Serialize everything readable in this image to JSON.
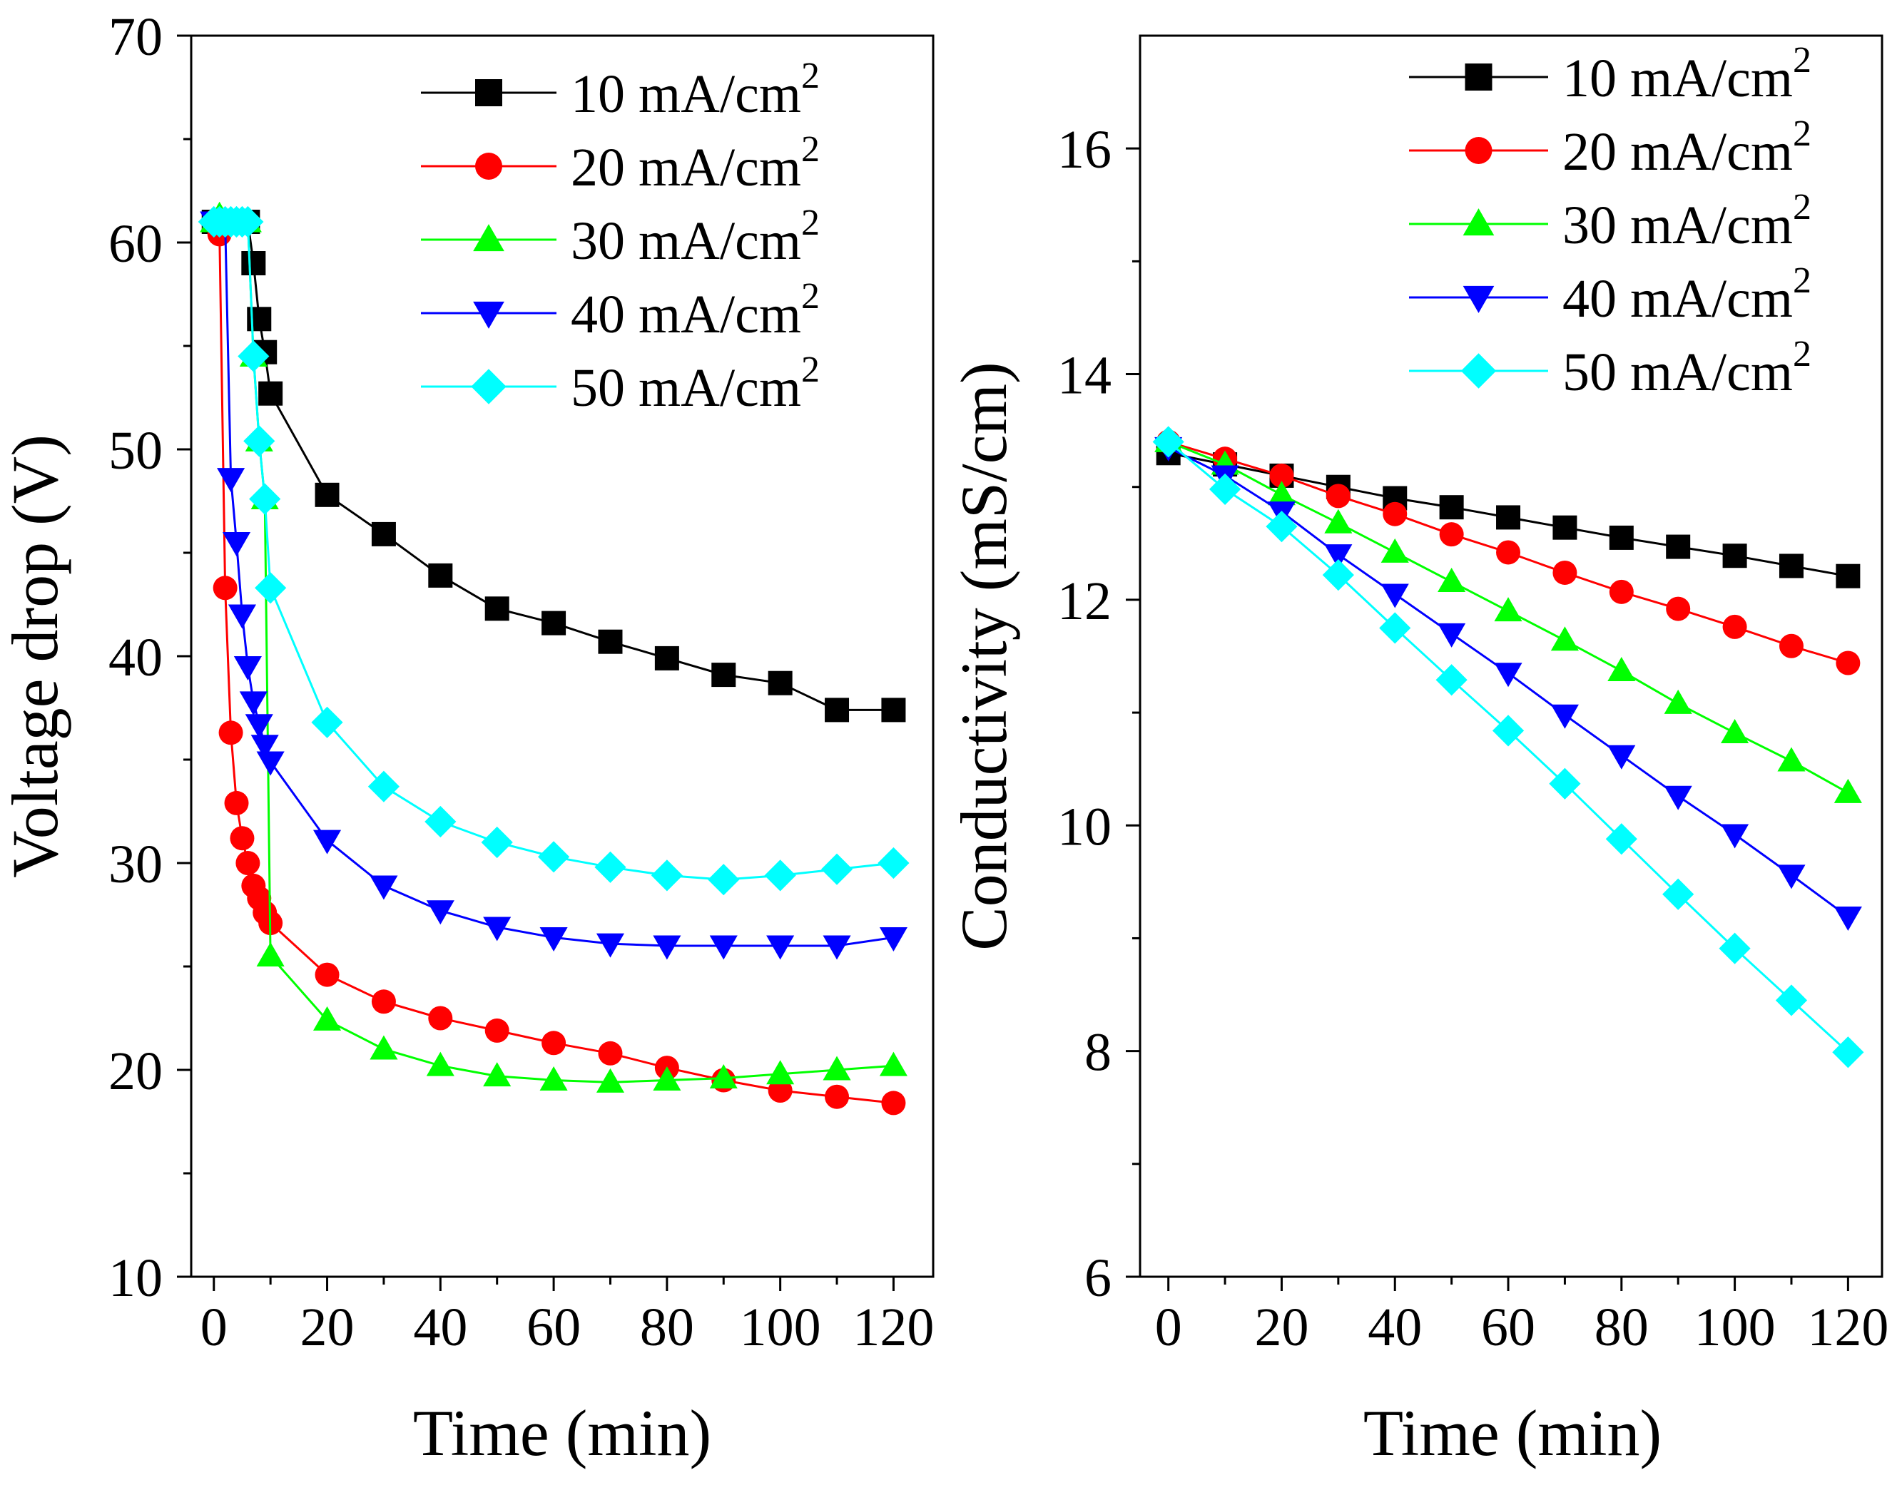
{
  "chart_data": [
    {
      "type": "line",
      "xlabel": "Time (min)",
      "ylabel": "Voltage drop (V)",
      "xlim": [
        -4,
        127
      ],
      "ylim": [
        10,
        70
      ],
      "xticks": [
        0,
        20,
        40,
        60,
        80,
        100,
        120
      ],
      "yticks": [
        10,
        20,
        30,
        40,
        50,
        60,
        70
      ],
      "x_tick_labels": [
        "0",
        "20",
        "40",
        "60",
        "80",
        "100",
        "120"
      ],
      "y_tick_labels": [
        "10",
        "20",
        "30",
        "40",
        "50",
        "60",
        "70"
      ],
      "legend": "top-right",
      "series": [
        {
          "name": "10 mA/cm",
          "sup": "2",
          "color": "#000000",
          "marker": "square",
          "x": [
            0,
            1,
            2,
            3,
            4,
            5,
            6,
            7,
            8,
            9,
            10,
            20,
            30,
            40,
            50,
            60,
            70,
            80,
            90,
            100,
            110,
            120
          ],
          "y": [
            61,
            61,
            61,
            61,
            61,
            61,
            61,
            59,
            56.3,
            54.7,
            52.7,
            47.8,
            45.9,
            43.9,
            42.3,
            41.6,
            40.7,
            39.9,
            39.1,
            38.7,
            37.4,
            37.4
          ]
        },
        {
          "name": "20 mA/cm",
          "sup": "2",
          "color": "#ff0000",
          "marker": "circle",
          "x": [
            0,
            1,
            2,
            3,
            4,
            5,
            6,
            7,
            8,
            9,
            10,
            20,
            30,
            40,
            50,
            60,
            70,
            80,
            90,
            100,
            110,
            120
          ],
          "y": [
            61,
            60.4,
            43.3,
            36.3,
            32.9,
            31.2,
            30,
            28.9,
            28.3,
            27.6,
            27.1,
            24.6,
            23.3,
            22.5,
            21.9,
            21.3,
            20.8,
            20.1,
            19.5,
            19,
            18.7,
            18.4
          ]
        },
        {
          "name": "30 mA/cm",
          "sup": "2",
          "color": "#00ff00",
          "marker": "triangle-up",
          "x": [
            0,
            1,
            2,
            3,
            4,
            5,
            6,
            7,
            8,
            9,
            10,
            20,
            30,
            40,
            50,
            60,
            70,
            80,
            90,
            100,
            110,
            120
          ],
          "y": [
            61,
            61.3,
            61,
            61,
            61,
            61,
            61,
            54.5,
            50.4,
            47.6,
            25.5,
            22.4,
            21,
            20.2,
            19.7,
            19.5,
            19.4,
            19.5,
            19.6,
            19.8,
            20,
            20.2
          ]
        },
        {
          "name": "40 mA/cm",
          "sup": "2",
          "color": "#0000ff",
          "marker": "triangle-down",
          "x": [
            0,
            1,
            2,
            3,
            4,
            5,
            6,
            7,
            8,
            9,
            10,
            20,
            30,
            40,
            50,
            60,
            70,
            80,
            90,
            100,
            110,
            120
          ],
          "y": [
            61,
            61,
            61,
            48.6,
            45.5,
            42,
            39.5,
            37.8,
            36.7,
            35.7,
            34.9,
            31.1,
            28.9,
            27.7,
            26.9,
            26.4,
            26.1,
            26,
            26,
            26,
            26,
            26.4
          ]
        },
        {
          "name": "50 mA/cm",
          "sup": "2",
          "color": "#00ffff",
          "marker": "diamond",
          "x": [
            0,
            1,
            2,
            3,
            4,
            5,
            6,
            7,
            8,
            9,
            10,
            20,
            30,
            40,
            50,
            60,
            70,
            80,
            90,
            100,
            110,
            120
          ],
          "y": [
            61,
            61,
            61,
            61,
            61,
            61,
            61,
            54.5,
            50.4,
            47.6,
            43.3,
            36.8,
            33.7,
            32,
            31,
            30.3,
            29.8,
            29.4,
            29.2,
            29.4,
            29.7,
            30
          ]
        }
      ]
    },
    {
      "type": "line",
      "xlabel": "Time (min)",
      "ylabel": "Conductivity (mS/cm)",
      "xlim": [
        -5,
        126
      ],
      "ylim": [
        6,
        17
      ],
      "xticks": [
        0,
        20,
        40,
        60,
        80,
        100,
        120
      ],
      "yticks": [
        6,
        8,
        10,
        12,
        14,
        16
      ],
      "x_tick_labels": [
        "0",
        "20",
        "40",
        "60",
        "80",
        "100",
        "120"
      ],
      "y_tick_labels": [
        "6",
        "8",
        "10",
        "12",
        "14",
        "16"
      ],
      "legend": "top-right",
      "series": [
        {
          "name": "10 mA/cm",
          "sup": "2",
          "color": "#000000",
          "marker": "square",
          "x": [
            0,
            10,
            20,
            30,
            40,
            50,
            60,
            70,
            80,
            90,
            100,
            110,
            120
          ],
          "y": [
            13.3,
            13.2,
            13.1,
            13,
            12.9,
            12.82,
            12.73,
            12.64,
            12.55,
            12.47,
            12.39,
            12.3,
            12.21
          ]
        },
        {
          "name": "20 mA/cm",
          "sup": "2",
          "color": "#ff0000",
          "marker": "circle",
          "x": [
            0,
            10,
            20,
            30,
            40,
            50,
            60,
            70,
            80,
            90,
            100,
            110,
            120
          ],
          "y": [
            13.4,
            13.25,
            13.1,
            12.92,
            12.76,
            12.58,
            12.42,
            12.24,
            12.07,
            11.92,
            11.76,
            11.59,
            11.44
          ]
        },
        {
          "name": "30 mA/cm",
          "sup": "2",
          "color": "#00ff00",
          "marker": "triangle-up",
          "x": [
            0,
            10,
            20,
            30,
            40,
            50,
            60,
            70,
            80,
            90,
            100,
            110,
            120
          ],
          "y": [
            13.4,
            13.2,
            12.93,
            12.68,
            12.42,
            12.16,
            11.9,
            11.64,
            11.37,
            11.08,
            10.82,
            10.57,
            10.29
          ]
        },
        {
          "name": "40 mA/cm",
          "sup": "2",
          "color": "#0000ff",
          "marker": "triangle-down",
          "x": [
            0,
            10,
            20,
            30,
            40,
            50,
            60,
            70,
            80,
            90,
            100,
            110,
            120
          ],
          "y": [
            13.35,
            13.1,
            12.78,
            12.4,
            12.05,
            11.7,
            11.35,
            10.98,
            10.62,
            10.26,
            9.92,
            9.56,
            9.19
          ]
        },
        {
          "name": "50 mA/cm",
          "sup": "2",
          "color": "#00ffff",
          "marker": "diamond",
          "x": [
            0,
            10,
            20,
            30,
            40,
            50,
            60,
            70,
            80,
            90,
            100,
            110,
            120
          ],
          "y": [
            13.4,
            12.98,
            12.65,
            12.22,
            11.75,
            11.29,
            10.84,
            10.37,
            9.88,
            9.39,
            8.91,
            8.45,
            7.99
          ]
        }
      ]
    }
  ]
}
